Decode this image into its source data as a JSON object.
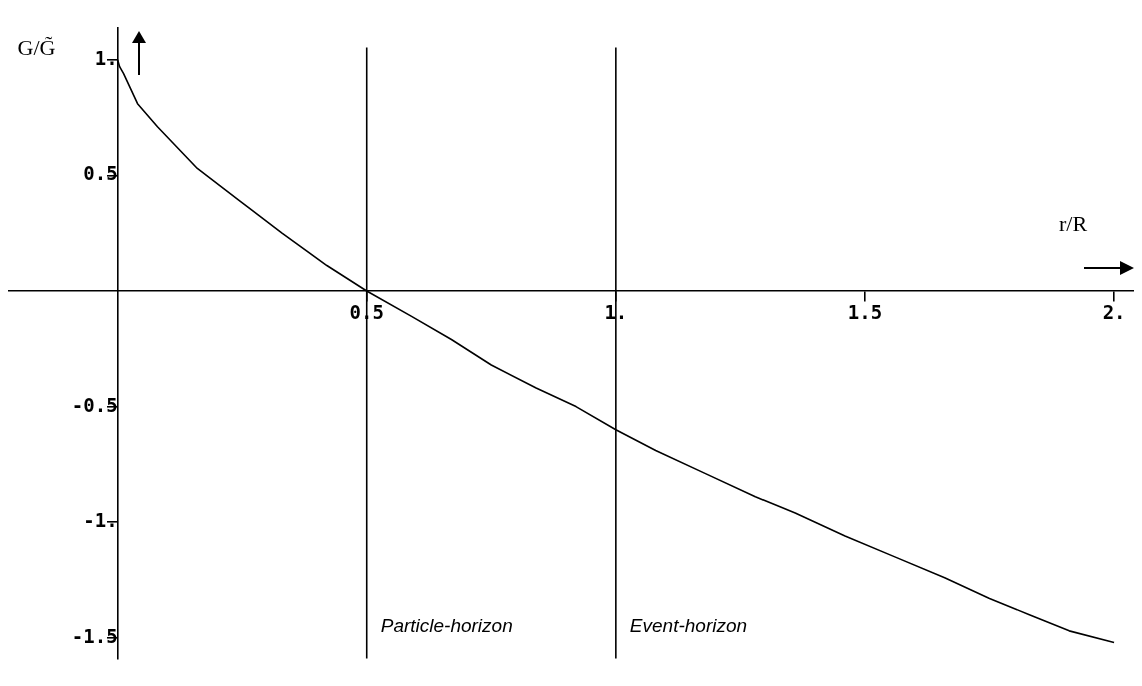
{
  "chart_data": {
    "type": "line",
    "xlabel": "r/R",
    "ylabel": "G/G̃",
    "xlim": [
      -0.22,
      2.04
    ],
    "ylim": [
      -1.59,
      1.14
    ],
    "xticks": [
      0.5,
      {
        "value": 1,
        "label": "1."
      },
      1.5,
      {
        "value": 2,
        "label": "2."
      }
    ],
    "yticks": [
      {
        "value": 1,
        "label": "1."
      },
      0.5,
      -0.5,
      {
        "value": -1,
        "label": "-1."
      },
      -1.5
    ],
    "grid": false,
    "legend": false,
    "marker": "none",
    "line_style": "solid",
    "series": [
      {
        "color": "#000000",
        "x": [
          0,
          0.004,
          0.012,
          0.04,
          0.08,
          0.16,
          0.245,
          0.33,
          0.42,
          0.5,
          0.59,
          0.67,
          0.75,
          0.84,
          0.92,
          1.0,
          1.08,
          1.18,
          1.28,
          1.36,
          1.46,
          1.56,
          1.66,
          1.75,
          1.83,
          1.91,
          2.0
        ],
        "values": [
          1.0,
          0.97,
          0.94,
          0.81,
          0.71,
          0.53,
          0.39,
          0.25,
          0.11,
          0,
          -0.11,
          -0.21,
          -0.32,
          -0.42,
          -0.5,
          -0.6,
          -0.69,
          -0.79,
          -0.89,
          -0.96,
          -1.06,
          -1.15,
          -1.24,
          -1.33,
          -1.4,
          -1.47,
          -1.52
        ]
      }
    ],
    "ref_lines": [
      {
        "axis": "x",
        "value": 0.5,
        "label": "Particle-horizon",
        "color": "#000000"
      },
      {
        "axis": "x",
        "value": 1,
        "label": "Event-horizon",
        "color": "#000000"
      }
    ]
  }
}
